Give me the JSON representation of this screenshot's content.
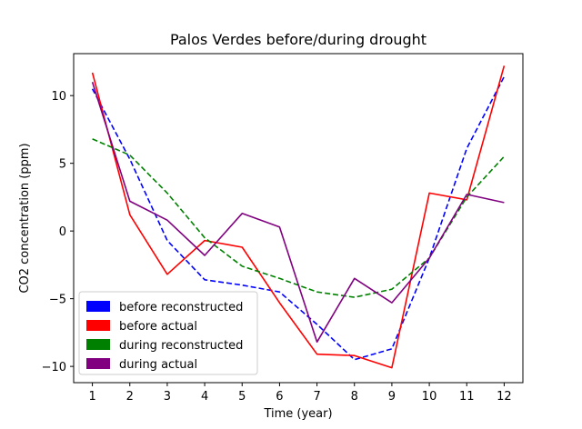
{
  "chart_data": {
    "type": "line",
    "title": "Palos Verdes before/during drought",
    "xlabel": "Time (year)",
    "ylabel": "CO2 concentration (ppm)",
    "xlim": [
      0.5,
      12.5
    ],
    "ylim": [
      -11.2,
      13.1
    ],
    "xticks": [
      1,
      2,
      3,
      4,
      5,
      6,
      7,
      8,
      9,
      10,
      11,
      12
    ],
    "yticks": [
      10,
      5,
      0,
      -5,
      -10
    ],
    "grid": false,
    "legend_position": "lower-left",
    "x": [
      1,
      2,
      3,
      4,
      5,
      6,
      7,
      8,
      9,
      10,
      11,
      12
    ],
    "series": [
      {
        "name": "before reconstructed",
        "color": "#0000ff",
        "style": "dashed",
        "values": [
          10.5,
          5.3,
          -0.7,
          -3.6,
          -4.0,
          -4.5,
          -6.9,
          -9.5,
          -8.7,
          -2.0,
          6.1,
          11.4
        ]
      },
      {
        "name": "before actual",
        "color": "#ff0000",
        "style": "solid",
        "values": [
          11.7,
          1.2,
          -3.2,
          -0.7,
          -1.2,
          -5.3,
          -9.1,
          -9.2,
          -10.1,
          2.8,
          2.3,
          12.2
        ]
      },
      {
        "name": "during reconstructed",
        "color": "#008000",
        "style": "dashed",
        "values": [
          6.8,
          5.6,
          2.8,
          -0.5,
          -2.6,
          -3.5,
          -4.5,
          -4.9,
          -4.3,
          -2.0,
          2.5,
          5.5
        ]
      },
      {
        "name": "during actual",
        "color": "#800080",
        "style": "solid",
        "values": [
          11.0,
          2.2,
          0.8,
          -1.8,
          1.3,
          0.3,
          -8.2,
          -3.5,
          -5.3,
          -2.0,
          2.7,
          2.1
        ]
      }
    ]
  }
}
